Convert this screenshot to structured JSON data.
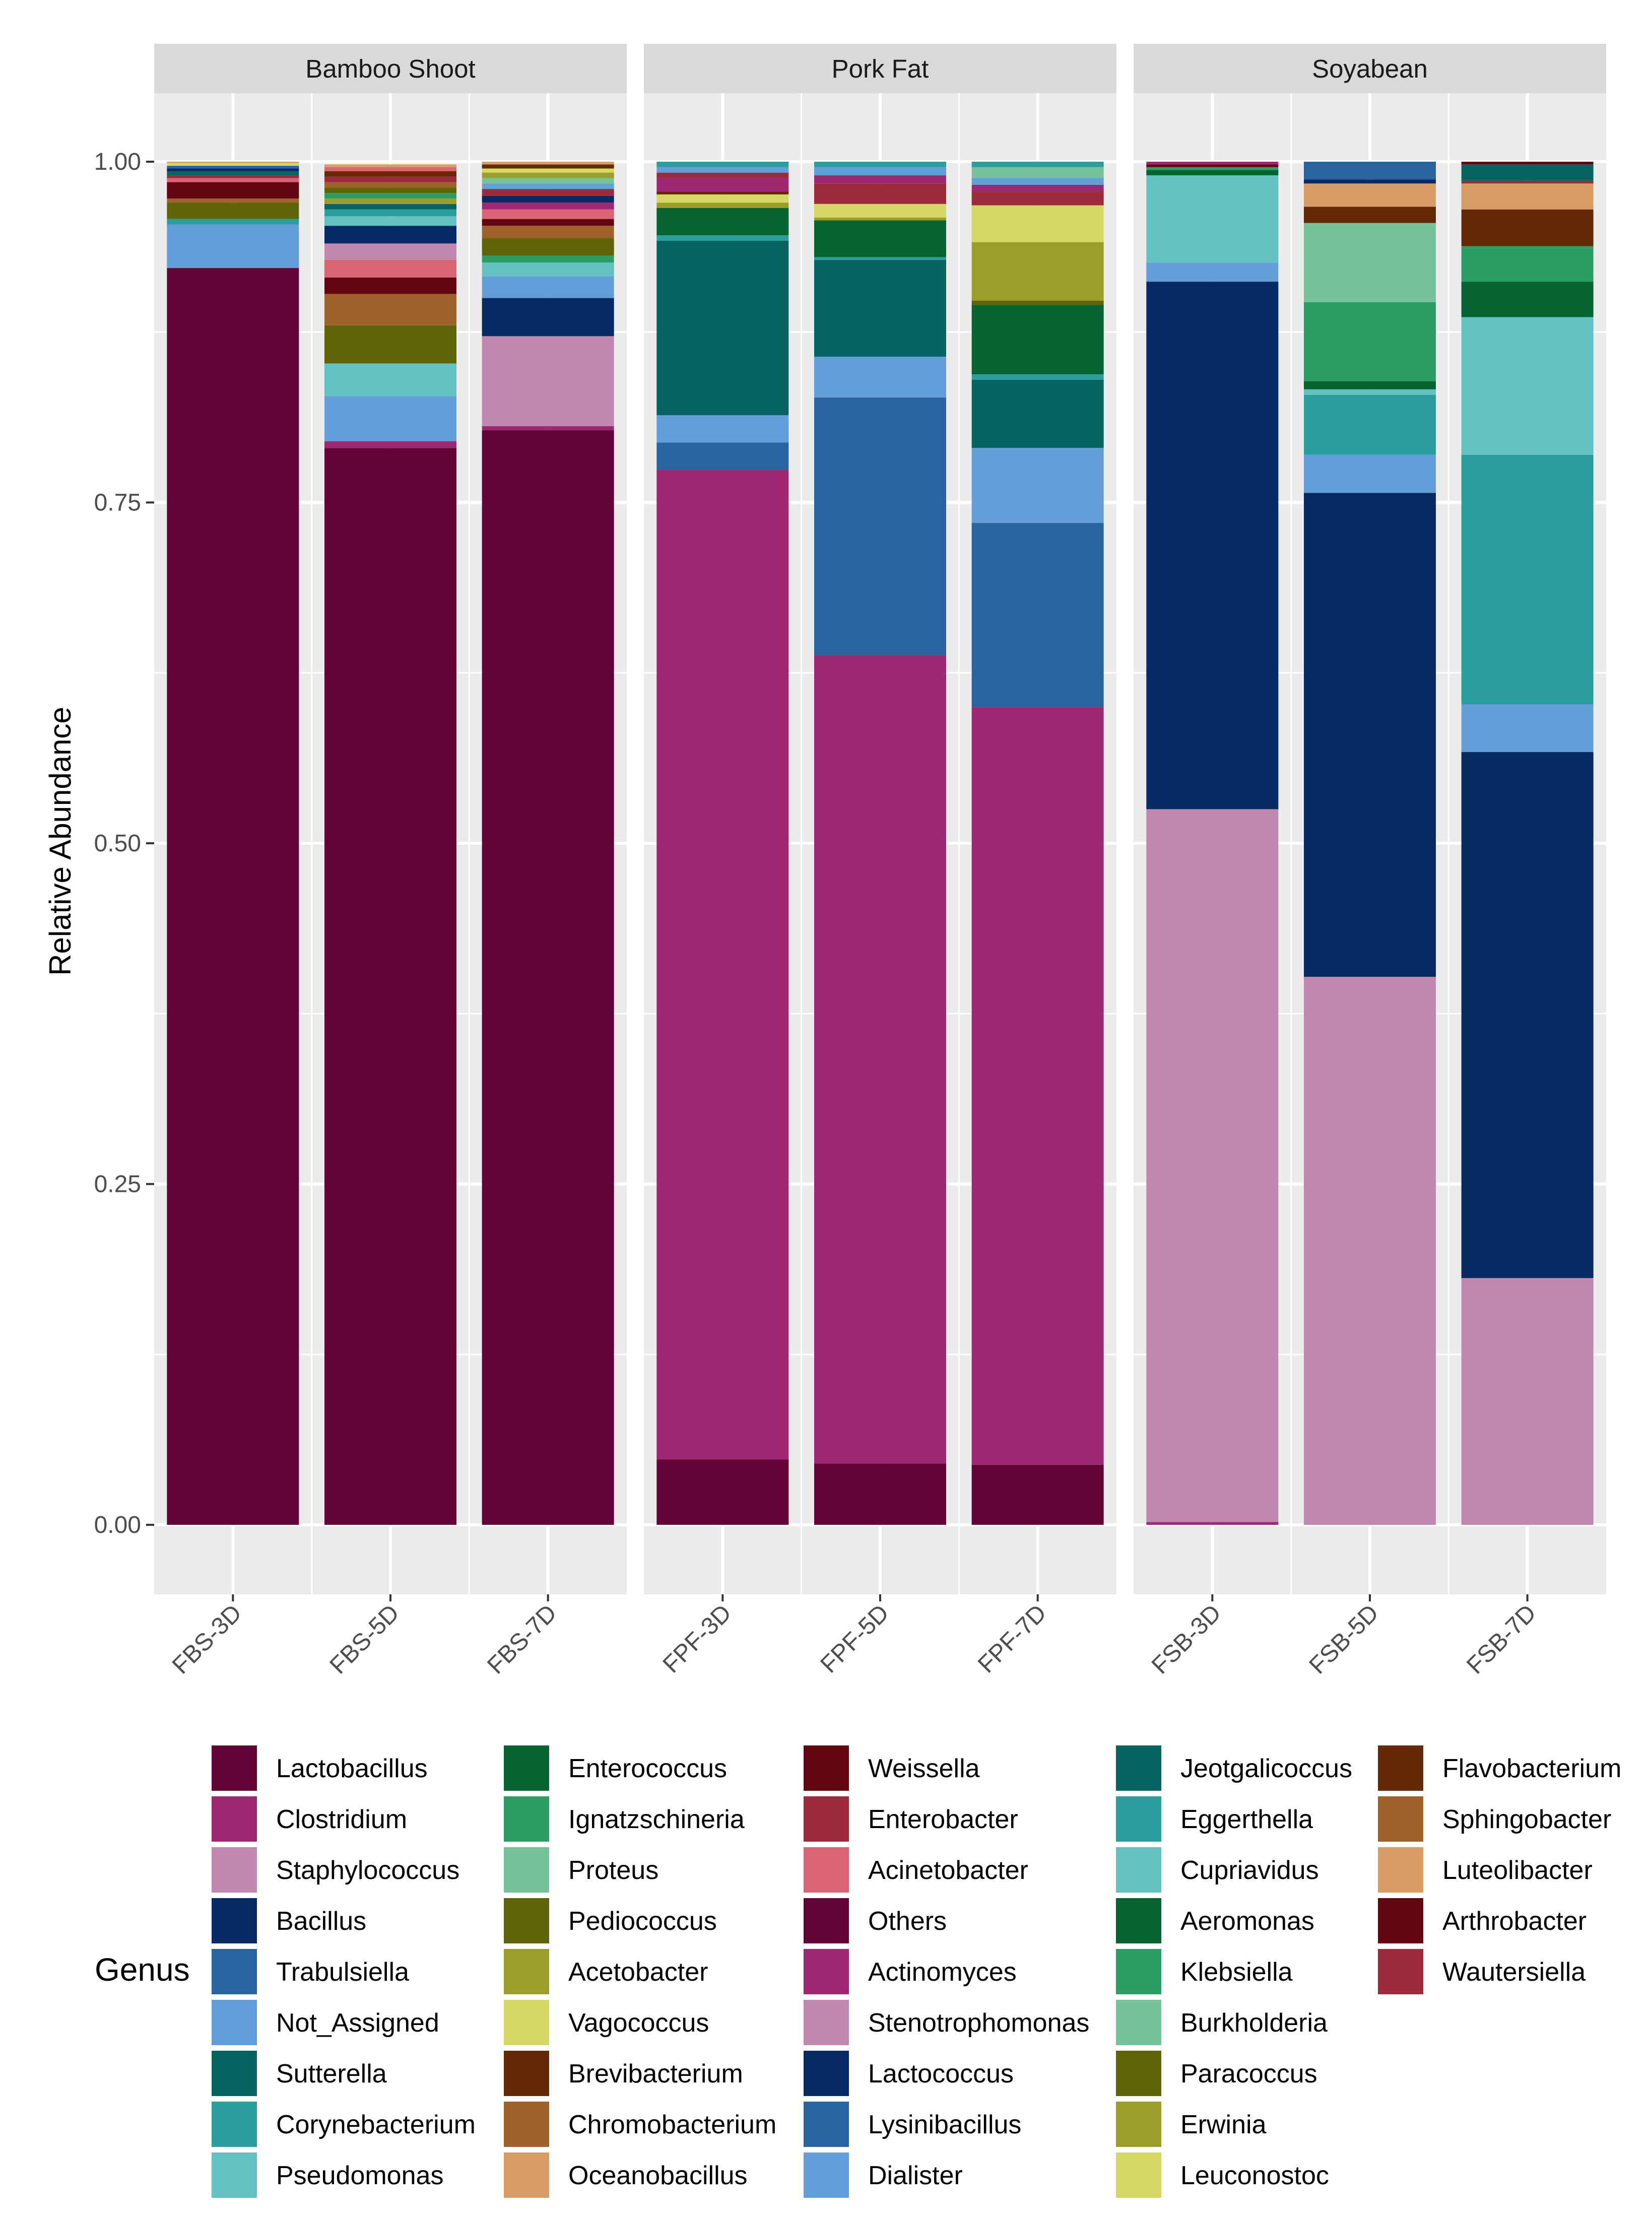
{
  "chart_data": {
    "type": "bar",
    "stacked": true,
    "facet_variable": "Food type",
    "ylabel": "Relative Abundance",
    "xlabel": "",
    "ylim": [
      0,
      1
    ],
    "yticks": [
      0,
      0.25,
      0.5,
      0.75,
      1
    ],
    "ytick_labels": [
      "0.00",
      "0.25",
      "0.50",
      "0.75",
      "1.00"
    ],
    "grid": true,
    "legend_title": "Genus",
    "legend_position": "bottom",
    "colors": {
      "Lactobacillus": "#630436",
      "Clostridium": "#9e2873",
      "Staphylococcus": "#c088ae",
      "Bacillus": "#082a64",
      "Trabulsiella": "#2a649e",
      "Not_Assigned": "#649ed8",
      "Sutterella": "#066461",
      "Corynebacterium": "#2a9e9c",
      "Pseudomonas": "#64c1c1",
      "Enterococcus": "#066432",
      "Ignatzschineria": "#2a9e64",
      "Proteus": "#76c39b",
      "Pediococcus": "#5f6406",
      "Acetobacter": "#9c9e2a",
      "Vagococcus": "#d5d864",
      "Brevibacterium": "#642a06",
      "Chromobacterium": "#9e632a",
      "Oceanobacillus": "#d89c64",
      "Weissella": "#640610",
      "Enterobacter": "#9e2a3d",
      "Acinetobacter": "#d86474",
      "Others": "#630436",
      "Actinomyces": "#9e2873",
      "Stenotrophomonas": "#c088ae",
      "Lactococcus": "#082a64",
      "Lysinibacillus": "#2a649e",
      "Dialister": "#649ed8",
      "Jeotgalicoccus": "#066461",
      "Eggerthella": "#2a9e9c",
      "Cupriavidus": "#64c1c1",
      "Aeromonas": "#066432",
      "Klebsiella": "#2a9e64",
      "Burkholderia": "#76c39b",
      "Paracoccus": "#5f6406",
      "Erwinia": "#9c9e2a",
      "Leuconostoc": "#d5d864",
      "Flavobacterium": "#642a06",
      "Sphingobacter": "#9e632a",
      "Luteolibacter": "#d89c64",
      "Arthrobacter": "#640610",
      "Wautersiella": "#9e2a3d"
    },
    "legend": [
      [
        "Lactobacillus",
        "Clostridium",
        "Staphylococcus",
        "Bacillus",
        "Trabulsiella",
        "Not_Assigned",
        "Sutterella",
        "Corynebacterium",
        "Pseudomonas"
      ],
      [
        "Enterococcus",
        "Ignatzschineria",
        "Proteus",
        "Pediococcus",
        "Acetobacter",
        "Vagococcus",
        "Brevibacterium",
        "Chromobacterium",
        "Oceanobacillus"
      ],
      [
        "Weissella",
        "Enterobacter",
        "Acinetobacter",
        "Others",
        "Actinomyces",
        "Stenotrophomonas",
        "Lactococcus",
        "Lysinibacillus",
        "Dialister"
      ],
      [
        "Jeotgalicoccus",
        "Eggerthella",
        "Cupriavidus",
        "Aeromonas",
        "Klebsiella",
        "Burkholderia",
        "Paracoccus",
        "Erwinia",
        "Leuconostoc"
      ],
      [
        "Flavobacterium",
        "Sphingobacter",
        "Luteolibacter",
        "Arthrobacter",
        "Wautersiella"
      ]
    ],
    "facets": [
      {
        "name": "Bamboo Shoot",
        "samples": [
          {
            "label": "FBS-3D",
            "segments": [
              {
                "genus": "Lactobacillus",
                "value": 0.922
              },
              {
                "genus": "Not_Assigned",
                "value": 0.032
              },
              {
                "genus": "Corynebacterium",
                "value": 0.004
              },
              {
                "genus": "Pediococcus",
                "value": 0.012
              },
              {
                "genus": "Chromobacterium",
                "value": 0.003
              },
              {
                "genus": "Weissella",
                "value": 0.012
              },
              {
                "genus": "Acinetobacter",
                "value": 0.003
              },
              {
                "genus": "Enterobacter",
                "value": 0.002
              },
              {
                "genus": "Sutterella",
                "value": 0.003
              },
              {
                "genus": "Bacillus",
                "value": 0.002
              },
              {
                "genus": "Trabulsiella",
                "value": 0.002
              },
              {
                "genus": "Vagococcus",
                "value": 0.002
              },
              {
                "genus": "Oceanobacillus",
                "value": 0.001
              }
            ]
          },
          {
            "label": "FBS-5D",
            "segments": [
              {
                "genus": "Lactobacillus",
                "value": 0.79
              },
              {
                "genus": "Clostridium",
                "value": 0.005
              },
              {
                "genus": "Not_Assigned",
                "value": 0.033
              },
              {
                "genus": "Pseudomonas",
                "value": 0.024
              },
              {
                "genus": "Pediococcus",
                "value": 0.028
              },
              {
                "genus": "Chromobacterium",
                "value": 0.023
              },
              {
                "genus": "Weissella",
                "value": 0.012
              },
              {
                "genus": "Acinetobacter",
                "value": 0.013
              },
              {
                "genus": "Staphylococcus",
                "value": 0.012
              },
              {
                "genus": "Bacillus",
                "value": 0.013
              },
              {
                "genus": "Pseudomonas",
                "value": 0.007
              },
              {
                "genus": "Corynebacterium",
                "value": 0.005
              },
              {
                "genus": "Sutterella",
                "value": 0.004
              },
              {
                "genus": "Acetobacter",
                "value": 0.004
              },
              {
                "genus": "Ignatzschineria",
                "value": 0.004
              },
              {
                "genus": "Pediococcus",
                "value": 0.004
              },
              {
                "genus": "Chromobacterium",
                "value": 0.004
              },
              {
                "genus": "Enterobacter",
                "value": 0.004
              },
              {
                "genus": "Brevibacterium",
                "value": 0.004
              },
              {
                "genus": "Acinetobacter",
                "value": 0.003
              },
              {
                "genus": "Oceanobacillus",
                "value": 0.002
              }
            ]
          },
          {
            "label": "FBS-7D",
            "segments": [
              {
                "genus": "Lactobacillus",
                "value": 0.803
              },
              {
                "genus": "Clostridium",
                "value": 0.003
              },
              {
                "genus": "Staphylococcus",
                "value": 0.066
              },
              {
                "genus": "Bacillus",
                "value": 0.028
              },
              {
                "genus": "Not_Assigned",
                "value": 0.016
              },
              {
                "genus": "Pseudomonas",
                "value": 0.01
              },
              {
                "genus": "Ignatzschineria",
                "value": 0.005
              },
              {
                "genus": "Pediococcus",
                "value": 0.013
              },
              {
                "genus": "Chromobacterium",
                "value": 0.009
              },
              {
                "genus": "Weissella",
                "value": 0.005
              },
              {
                "genus": "Acinetobacter",
                "value": 0.007
              },
              {
                "genus": "Clostridium",
                "value": 0.005
              },
              {
                "genus": "Bacillus",
                "value": 0.005
              },
              {
                "genus": "Enterobacter",
                "value": 0.005
              },
              {
                "genus": "Not_Assigned",
                "value": 0.004
              },
              {
                "genus": "Proteus",
                "value": 0.004
              },
              {
                "genus": "Acetobacter",
                "value": 0.004
              },
              {
                "genus": "Vagococcus",
                "value": 0.003
              },
              {
                "genus": "Brevibacterium",
                "value": 0.003
              },
              {
                "genus": "Oceanobacillus",
                "value": 0.002
              }
            ]
          }
        ]
      },
      {
        "name": "Pork Fat",
        "samples": [
          {
            "label": "FPF-3D",
            "segments": [
              {
                "genus": "Lactobacillus",
                "value": 0.048
              },
              {
                "genus": "Clostridium",
                "value": 0.726
              },
              {
                "genus": "Trabulsiella",
                "value": 0.02
              },
              {
                "genus": "Not_Assigned",
                "value": 0.02
              },
              {
                "genus": "Sutterella",
                "value": 0.128
              },
              {
                "genus": "Corynebacterium",
                "value": 0.004
              },
              {
                "genus": "Enterococcus",
                "value": 0.02
              },
              {
                "genus": "Acetobacter",
                "value": 0.004
              },
              {
                "genus": "Vagococcus",
                "value": 0.006
              },
              {
                "genus": "Brevibacterium",
                "value": 0.002
              },
              {
                "genus": "Clostridium",
                "value": 0.01
              },
              {
                "genus": "Enterobacter",
                "value": 0.004
              },
              {
                "genus": "Not_Assigned",
                "value": 0.004
              },
              {
                "genus": "Corynebacterium",
                "value": 0.004
              }
            ]
          },
          {
            "label": "FPF-5D",
            "segments": [
              {
                "genus": "Lactobacillus",
                "value": 0.045
              },
              {
                "genus": "Clostridium",
                "value": 0.593
              },
              {
                "genus": "Trabulsiella",
                "value": 0.189
              },
              {
                "genus": "Not_Assigned",
                "value": 0.03
              },
              {
                "genus": "Sutterella",
                "value": 0.071
              },
              {
                "genus": "Corynebacterium",
                "value": 0.002
              },
              {
                "genus": "Enterococcus",
                "value": 0.027
              },
              {
                "genus": "Acetobacter",
                "value": 0.002
              },
              {
                "genus": "Vagococcus",
                "value": 0.01
              },
              {
                "genus": "Enterobacter",
                "value": 0.015
              },
              {
                "genus": "Clostridium",
                "value": 0.006
              },
              {
                "genus": "Not_Assigned",
                "value": 0.006
              },
              {
                "genus": "Corynebacterium",
                "value": 0.004
              }
            ]
          },
          {
            "label": "FPF-7D",
            "segments": [
              {
                "genus": "Lactobacillus",
                "value": 0.044
              },
              {
                "genus": "Clostridium",
                "value": 0.556
              },
              {
                "genus": "Trabulsiella",
                "value": 0.135
              },
              {
                "genus": "Not_Assigned",
                "value": 0.055
              },
              {
                "genus": "Sutterella",
                "value": 0.05
              },
              {
                "genus": "Corynebacterium",
                "value": 0.004
              },
              {
                "genus": "Enterococcus",
                "value": 0.051
              },
              {
                "genus": "Pediococcus",
                "value": 0.003
              },
              {
                "genus": "Acetobacter",
                "value": 0.043
              },
              {
                "genus": "Vagococcus",
                "value": 0.027
              },
              {
                "genus": "Enterobacter",
                "value": 0.01
              },
              {
                "genus": "Clostridium",
                "value": 0.005
              },
              {
                "genus": "Not_Assigned",
                "value": 0.005
              },
              {
                "genus": "Proteus",
                "value": 0.008
              },
              {
                "genus": "Corynebacterium",
                "value": 0.004
              }
            ]
          }
        ]
      },
      {
        "name": "Soyabean",
        "samples": [
          {
            "label": "FSB-3D",
            "segments": [
              {
                "genus": "Actinomyces",
                "value": 0.002
              },
              {
                "genus": "Stenotrophomonas",
                "value": 0.523
              },
              {
                "genus": "Lactococcus",
                "value": 0.387
              },
              {
                "genus": "Dialister",
                "value": 0.014
              },
              {
                "genus": "Cupriavidus",
                "value": 0.064
              },
              {
                "genus": "Aeromonas",
                "value": 0.004
              },
              {
                "genus": "Klebsiella",
                "value": 0.002
              },
              {
                "genus": "Weissella",
                "value": 0.002
              },
              {
                "genus": "Actinomyces",
                "value": 0.002
              }
            ]
          },
          {
            "label": "FSB-5D",
            "segments": [
              {
                "genus": "Stenotrophomonas",
                "value": 0.402
              },
              {
                "genus": "Lactococcus",
                "value": 0.355
              },
              {
                "genus": "Dialister",
                "value": 0.028
              },
              {
                "genus": "Eggerthella",
                "value": 0.044
              },
              {
                "genus": "Cupriavidus",
                "value": 0.004
              },
              {
                "genus": "Aeromonas",
                "value": 0.006
              },
              {
                "genus": "Klebsiella",
                "value": 0.058
              },
              {
                "genus": "Burkholderia",
                "value": 0.058
              },
              {
                "genus": "Flavobacterium",
                "value": 0.012
              },
              {
                "genus": "Luteolibacter",
                "value": 0.017
              },
              {
                "genus": "Lactococcus",
                "value": 0.003
              },
              {
                "genus": "Lysinibacillus",
                "value": 0.013
              }
            ]
          },
          {
            "label": "FSB-7D",
            "segments": [
              {
                "genus": "Stenotrophomonas",
                "value": 0.181
              },
              {
                "genus": "Lactococcus",
                "value": 0.386
              },
              {
                "genus": "Dialister",
                "value": 0.035
              },
              {
                "genus": "Eggerthella",
                "value": 0.183
              },
              {
                "genus": "Cupriavidus",
                "value": 0.101
              },
              {
                "genus": "Aeromonas",
                "value": 0.026
              },
              {
                "genus": "Klebsiella",
                "value": 0.026
              },
              {
                "genus": "Flavobacterium",
                "value": 0.027
              },
              {
                "genus": "Luteolibacter",
                "value": 0.019
              },
              {
                "genus": "Enterobacter",
                "value": 0.002
              },
              {
                "genus": "Jeotgalicoccus",
                "value": 0.012
              },
              {
                "genus": "Arthrobacter",
                "value": 0.002
              }
            ]
          }
        ]
      }
    ]
  }
}
